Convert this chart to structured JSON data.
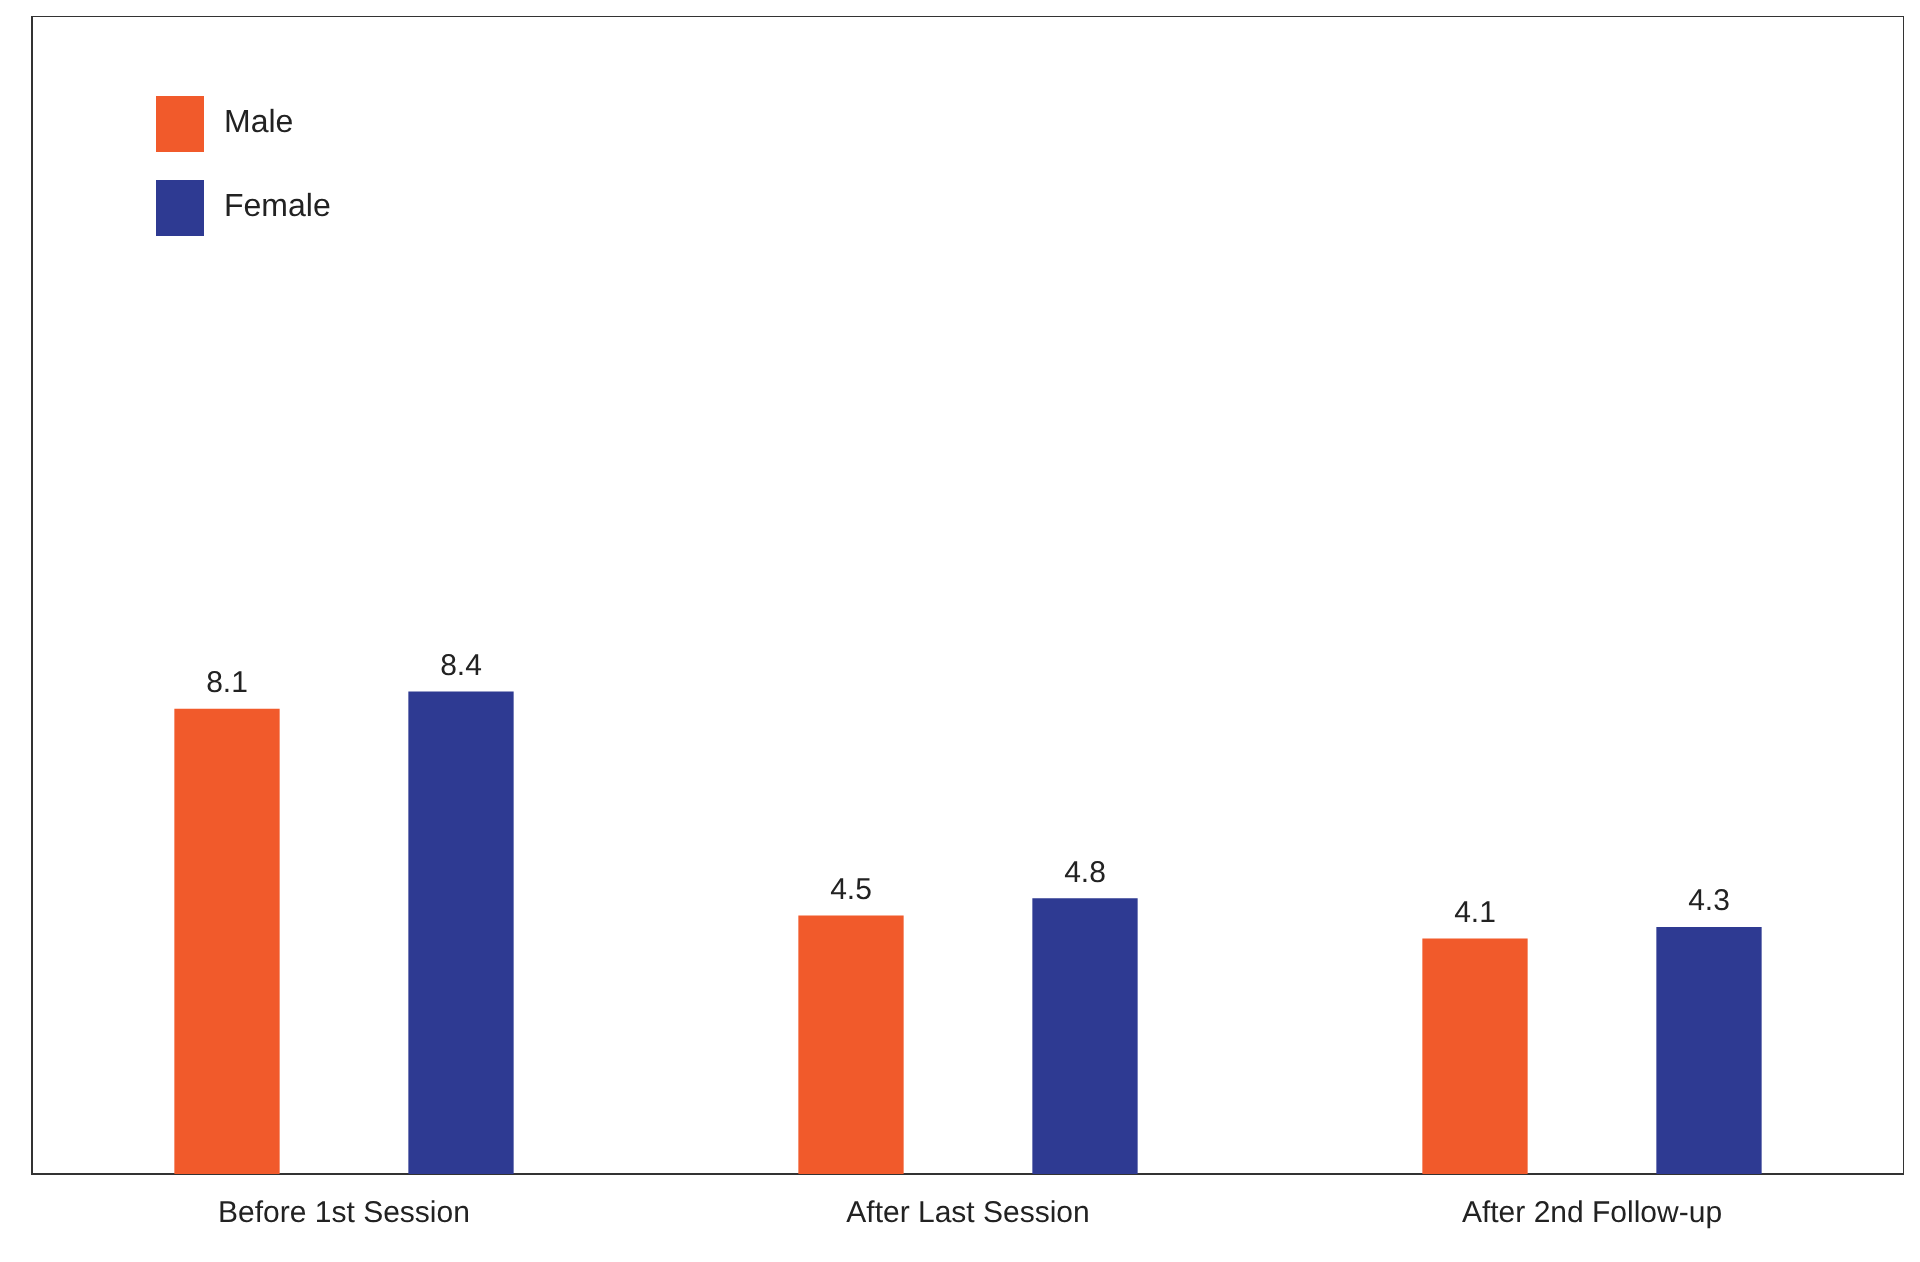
{
  "chart_data": {
    "type": "bar",
    "categories": [
      "Before 1st Session",
      "After Last Session",
      "After 2nd Follow-up"
    ],
    "series": [
      {
        "name": "Male",
        "color": "#f15a2b",
        "values": [
          8.1,
          4.5,
          4.1
        ]
      },
      {
        "name": "Female",
        "color": "#2e3a92",
        "values": [
          8.4,
          4.8,
          4.3
        ]
      }
    ],
    "relative": false,
    "data_labels": true,
    "legend": "top left",
    "grid": false
  }
}
